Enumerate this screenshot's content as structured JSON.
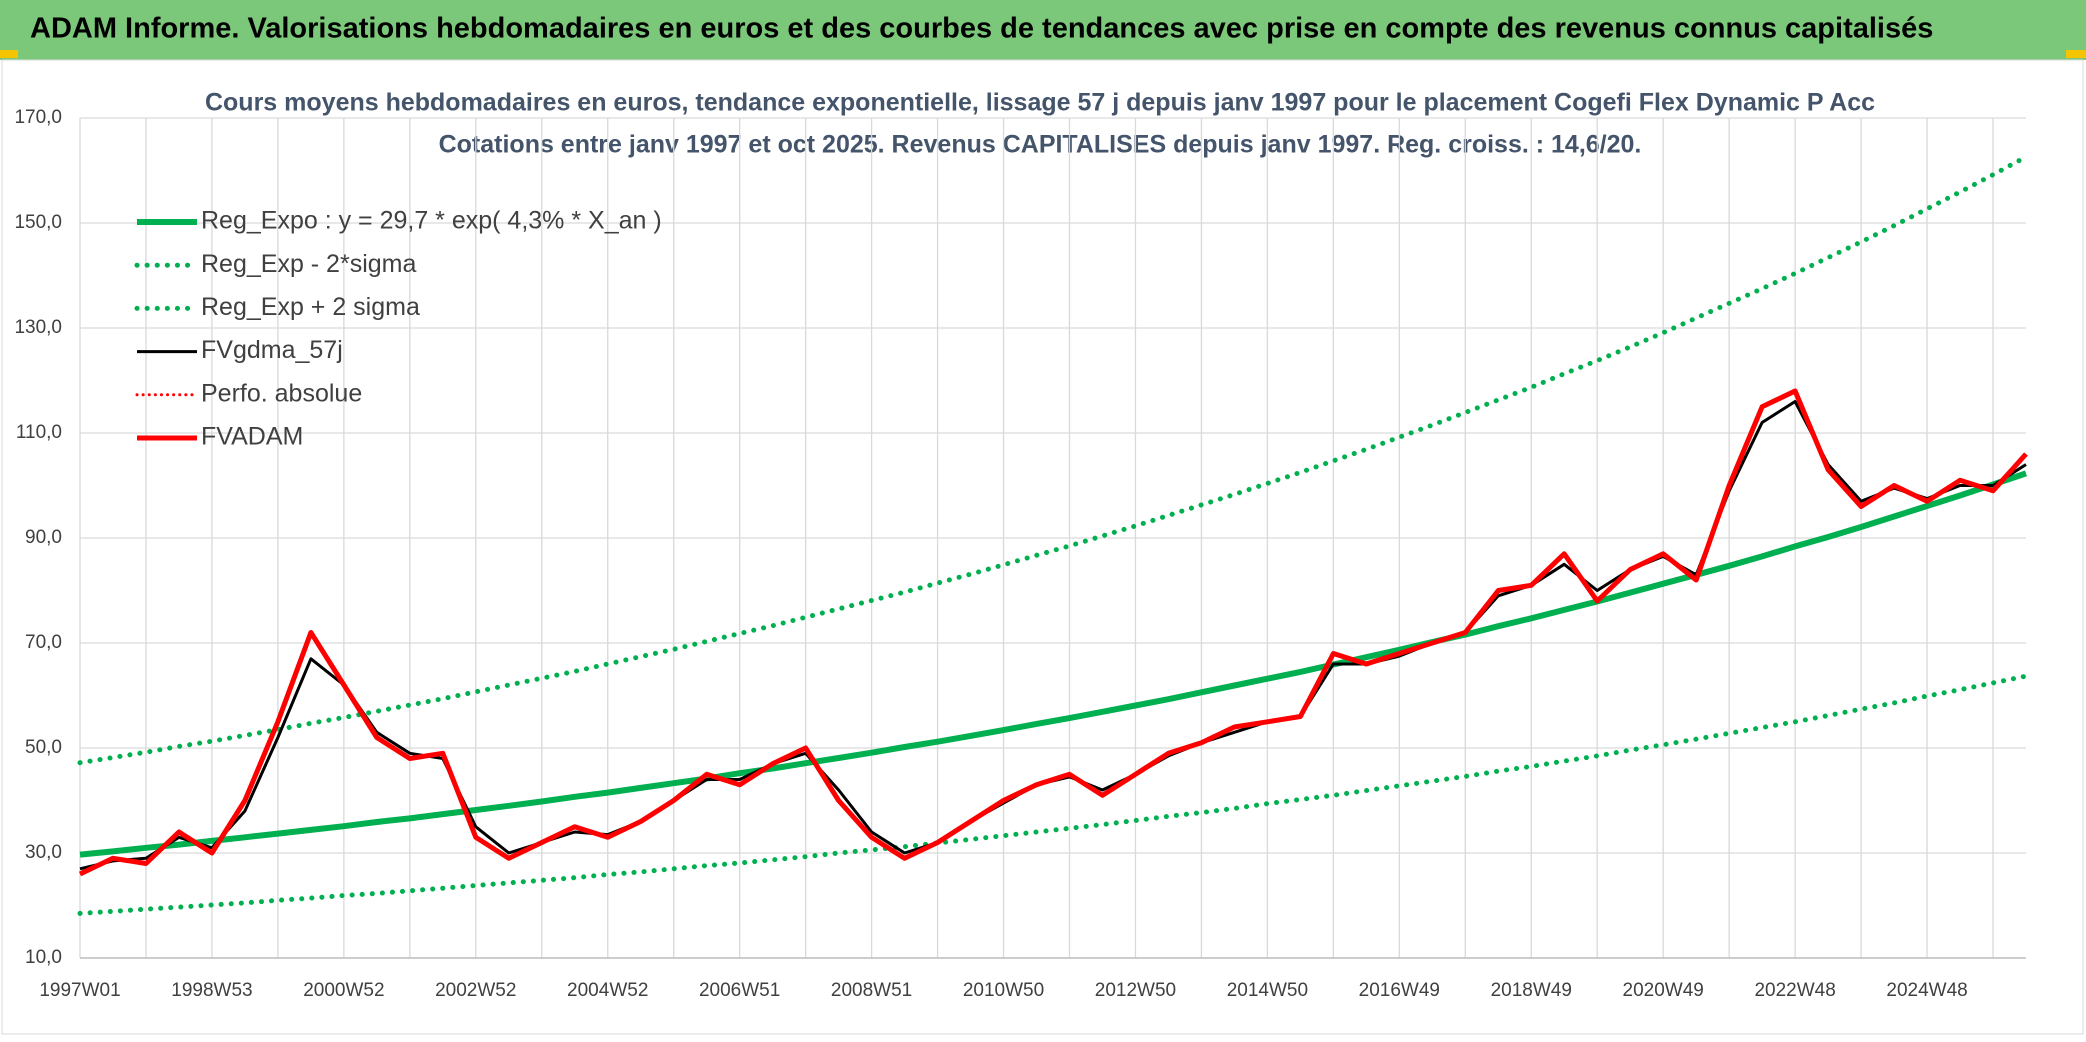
{
  "chart_data": {
    "type": "line",
    "title": "ADAM Informe. Valorisations hebdomadaires en euros et des courbes de tendances avec prise en compte des revenus connus capitalisés",
    "subtitle": [
      "Cours moyens hebdomadaires en euros, tendance exponentielle, lissage 57 j depuis janv 1997 pour le placement Cogefi Flex Dynamic P Acc",
      "Cotations entre janv 1997 et oct 2025. Revenus CAPITALISES depuis janv 1997. Reg. croiss. : 14,6/20."
    ],
    "categories": [
      "1997W01",
      null,
      null,
      null,
      "1998W53",
      null,
      null,
      null,
      "2000W52",
      null,
      null,
      null,
      "2002W52",
      null,
      null,
      null,
      "2004W52",
      null,
      null,
      null,
      "2006W51",
      null,
      null,
      null,
      "2008W51",
      null,
      null,
      null,
      "2010W50",
      null,
      null,
      null,
      "2012W50",
      null,
      null,
      null,
      "2014W50",
      null,
      null,
      null,
      "2016W49",
      null,
      null,
      null,
      "2018W49",
      null,
      null,
      null,
      "2020W49",
      null,
      null,
      null,
      "2022W48",
      null,
      null,
      null,
      "2024W48",
      null,
      null,
      null
    ],
    "ylim": [
      10,
      170
    ],
    "yticks": [
      {
        "value": 10,
        "label": "10,0"
      },
      {
        "value": 30,
        "label": "30,0"
      },
      {
        "value": 50,
        "label": "50,0"
      },
      {
        "value": 70,
        "label": "70,0"
      },
      {
        "value": 90,
        "label": "90,0"
      },
      {
        "value": 110,
        "label": "110,0"
      },
      {
        "value": 130,
        "label": "130,0"
      },
      {
        "value": 150,
        "label": "150,0"
      },
      {
        "value": 170,
        "label": "170,0"
      }
    ],
    "grid": true,
    "legend": "upper left",
    "series": [
      {
        "name": "Reg_Expo : y = 29,7 * exp( 4,3% *  X_an )",
        "color": "#00b050",
        "style": "solid",
        "width": 6,
        "values": [
          29.7,
          30.3,
          31.0,
          31.6,
          32.3,
          33.0,
          33.7,
          34.4,
          35.1,
          35.9,
          36.6,
          37.4,
          38.2,
          39.0,
          39.8,
          40.7,
          41.5,
          42.4,
          43.3,
          44.2,
          45.2,
          46.1,
          47.1,
          48.1,
          49.1,
          50.2,
          51.2,
          52.3,
          53.4,
          54.6,
          55.7,
          56.9,
          58.1,
          59.3,
          60.6,
          61.9,
          63.2,
          64.5,
          65.9,
          67.3,
          68.7,
          70.2,
          71.6,
          73.2,
          74.7,
          76.3,
          77.9,
          79.6,
          81.3,
          83.0,
          84.7,
          86.5,
          88.4,
          90.2,
          92.1,
          94.1,
          96.1,
          98.1,
          100.2,
          102.3
        ]
      },
      {
        "name": "Reg_Exp - 2*sigma",
        "color": "#00b050",
        "style": "dotted",
        "width": 5,
        "values": [
          18.5,
          18.9,
          19.3,
          19.7,
          20.1,
          20.5,
          21.0,
          21.4,
          21.9,
          22.3,
          22.8,
          23.3,
          23.8,
          24.3,
          24.8,
          25.3,
          25.9,
          26.4,
          27.0,
          27.6,
          28.1,
          28.7,
          29.3,
          30.0,
          30.6,
          31.2,
          31.9,
          32.6,
          33.3,
          34.0,
          34.7,
          35.4,
          36.2,
          37.0,
          37.7,
          38.5,
          39.4,
          40.2,
          41.0,
          41.9,
          42.8,
          43.7,
          44.6,
          45.6,
          46.5,
          47.5,
          48.5,
          49.6,
          50.6,
          51.7,
          52.8,
          53.9,
          55.0,
          56.2,
          57.4,
          58.6,
          59.9,
          61.1,
          62.4,
          63.7
        ]
      },
      {
        "name": "Reg_Exp + 2 sigma",
        "color": "#00b050",
        "style": "dotted",
        "width": 5,
        "values": [
          47.2,
          48.2,
          49.2,
          50.3,
          51.3,
          52.4,
          53.5,
          54.7,
          55.8,
          57.0,
          58.2,
          59.4,
          60.7,
          62.0,
          63.3,
          64.6,
          66.0,
          67.4,
          68.8,
          70.3,
          71.8,
          73.3,
          74.9,
          76.5,
          78.1,
          79.7,
          81.4,
          83.1,
          84.9,
          86.7,
          88.5,
          90.4,
          92.3,
          94.3,
          96.3,
          98.3,
          100.4,
          102.5,
          104.7,
          106.9,
          109.2,
          111.5,
          113.9,
          116.3,
          118.7,
          121.3,
          123.8,
          126.4,
          129.1,
          131.9,
          134.7,
          137.5,
          140.4,
          143.4,
          146.4,
          149.5,
          152.7,
          155.9,
          159.2,
          162.6
        ]
      },
      {
        "name": "FVgdma_57j",
        "color": "#000000",
        "style": "solid",
        "width": 3,
        "values": [
          27,
          28.5,
          29,
          33,
          31,
          38,
          52,
          67,
          62,
          53,
          49,
          48,
          35,
          30,
          32,
          34,
          33.5,
          36,
          40,
          44,
          44,
          47,
          49,
          42,
          34,
          30,
          32,
          36,
          39.5,
          43,
          44.5,
          42,
          45,
          48.5,
          51,
          53,
          55,
          56,
          66,
          66,
          67.5,
          70,
          72,
          79,
          81,
          85,
          80,
          84,
          86.5,
          83,
          99,
          112,
          116,
          104,
          97,
          99.5,
          97.5,
          100,
          100,
          104
        ]
      },
      {
        "name": "Perfo. absolue",
        "color": "#ff0000",
        "style": "dotted",
        "width": 3,
        "values": [
          null,
          null,
          null,
          null,
          null,
          null,
          null,
          null,
          null,
          null,
          null,
          null,
          null,
          null,
          null,
          null,
          null,
          null,
          null,
          null,
          null,
          null,
          null,
          null,
          null,
          null,
          null,
          null,
          null,
          null,
          null,
          null,
          null,
          null,
          null,
          null,
          null,
          null,
          null,
          null,
          null,
          null,
          null,
          null,
          null,
          null,
          null,
          null,
          null,
          null,
          null,
          null,
          null,
          null,
          null,
          null,
          null,
          null,
          null,
          null
        ]
      },
      {
        "name": "FVADAM",
        "color": "#ff0000",
        "style": "solid",
        "width": 5,
        "values": [
          26,
          29,
          28,
          34,
          30,
          40,
          55,
          72,
          62,
          52,
          48,
          49,
          33,
          29,
          32,
          35,
          33,
          36,
          40,
          45,
          43,
          47,
          50,
          40,
          33,
          29,
          32,
          36,
          40,
          43,
          45,
          41,
          45,
          49,
          51,
          54,
          55,
          56,
          68,
          66,
          68,
          70,
          72,
          80,
          81,
          87,
          78,
          84,
          87,
          82,
          100,
          115,
          118,
          103,
          96,
          100,
          97,
          101,
          99,
          106
        ]
      }
    ]
  }
}
